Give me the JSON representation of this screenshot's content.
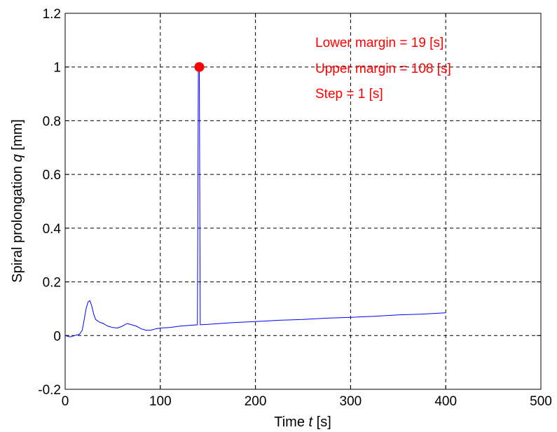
{
  "chart_data": {
    "type": "line",
    "xlabel": {
      "prefix": "Time ",
      "var": "t",
      "unit": " [s]"
    },
    "ylabel": {
      "prefix": "Spiral prolongation ",
      "var": "q",
      "unit": " [mm]"
    },
    "xlim": [
      0,
      500
    ],
    "ylim": [
      -0.2,
      1.2
    ],
    "xticks": [
      "0",
      "100",
      "200",
      "300",
      "400",
      "500"
    ],
    "yticks": [
      "-0.2",
      "0",
      "0.2",
      "0.4",
      "0.6",
      "0.8",
      "1",
      "1.2"
    ],
    "xtick_values": [
      0,
      100,
      200,
      300,
      400,
      500
    ],
    "ytick_values": [
      -0.2,
      0,
      0.2,
      0.4,
      0.6,
      0.8,
      1,
      1.2
    ],
    "grid": true,
    "series": [
      {
        "color": "#0000ff",
        "x": [
          0,
          5,
          10,
          15,
          18,
          20,
          22,
          24,
          26,
          28,
          30,
          32,
          34,
          36,
          40,
          45,
          50,
          55,
          60,
          65,
          70,
          75,
          80,
          85,
          90,
          95,
          100,
          110,
          120,
          130,
          139,
          140,
          141,
          142,
          150,
          175,
          200,
          225,
          250,
          275,
          300,
          325,
          350,
          375,
          400
        ],
        "y": [
          0.0,
          -0.005,
          0.0,
          0.005,
          0.02,
          0.06,
          0.1,
          0.125,
          0.13,
          0.11,
          0.08,
          0.06,
          0.055,
          0.05,
          0.045,
          0.035,
          0.03,
          0.028,
          0.035,
          0.045,
          0.04,
          0.035,
          0.025,
          0.02,
          0.02,
          0.025,
          0.028,
          0.03,
          0.035,
          0.038,
          0.04,
          1.0,
          1.0,
          0.04,
          0.042,
          0.048,
          0.052,
          0.057,
          0.06,
          0.065,
          0.068,
          0.072,
          0.077,
          0.08,
          0.085
        ]
      }
    ],
    "marker": {
      "x": 141,
      "y": 1.0,
      "color": "#ff0000"
    },
    "annotations": [
      "Lower margin = 19 [s]",
      "Upper margin = 108 [s]",
      "Step = 1 [s]"
    ],
    "annotation_color": "#ff0000"
  }
}
